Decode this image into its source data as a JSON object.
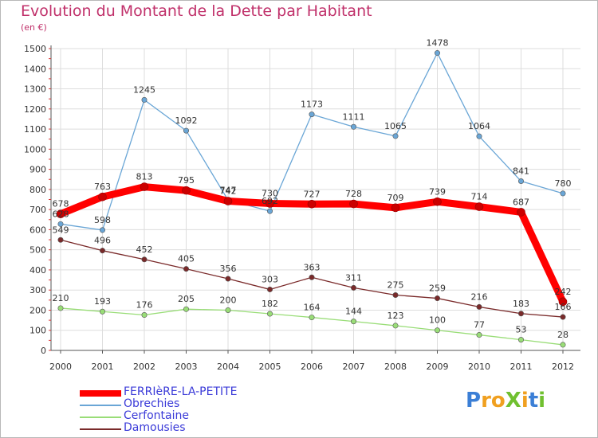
{
  "chart_data": {
    "type": "line",
    "title": "Evolution du Montant de la Dette par Habitant",
    "subtitle": "(en €)",
    "x": [
      "2000",
      "2001",
      "2002",
      "2003",
      "2004",
      "2005",
      "2006",
      "2007",
      "2008",
      "2009",
      "2010",
      "2011",
      "2012"
    ],
    "ylim": [
      0,
      1500
    ],
    "yticks": [
      0,
      100,
      200,
      300,
      400,
      500,
      600,
      700,
      800,
      900,
      1000,
      1100,
      1200,
      1300,
      1400,
      1500
    ],
    "grid": true,
    "legend_position": "bottom-left",
    "series": [
      {
        "name": "FERRIèRE-LA-PETITE",
        "color": "#ff0000",
        "values": [
          678,
          763,
          813,
          795,
          742,
          730,
          727,
          728,
          709,
          739,
          714,
          687,
          242
        ]
      },
      {
        "name": "Obrechies",
        "color": "#6aa6d6",
        "values": [
          628,
          598,
          1245,
          1092,
          747,
          692,
          1173,
          1111,
          1065,
          1478,
          1064,
          841,
          780
        ]
      },
      {
        "name": "Cerfontaine",
        "color": "#99dd77",
        "values": [
          210,
          193,
          176,
          205,
          200,
          182,
          164,
          144,
          123,
          100,
          77,
          53,
          28
        ]
      },
      {
        "name": "Damousies",
        "color": "#7a2a2a",
        "values": [
          549,
          496,
          452,
          405,
          356,
          303,
          363,
          311,
          275,
          259,
          216,
          183,
          166
        ]
      }
    ]
  },
  "logo": {
    "letters": [
      {
        "ch": "P",
        "color": "#3b7fd6"
      },
      {
        "ch": "r",
        "color": "#f0a020"
      },
      {
        "ch": "o",
        "color": "#f0a020"
      },
      {
        "ch": "X",
        "color": "#70c030"
      },
      {
        "ch": "i",
        "color": "#f0a020"
      },
      {
        "ch": "t",
        "color": "#3b7fd6"
      },
      {
        "ch": "i",
        "color": "#70c030"
      }
    ]
  }
}
